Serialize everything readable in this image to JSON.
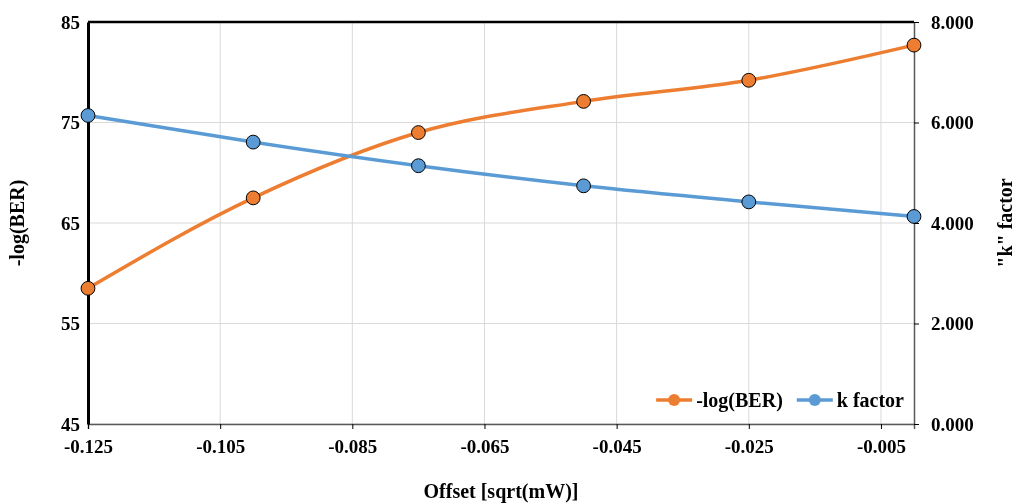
{
  "chart_data": {
    "type": "line",
    "xlabel": "Offset [sqrt(mW)]",
    "ylabel": "-log(BER)",
    "y2label": "\"k\" factor",
    "x": [
      -0.125,
      -0.1,
      -0.075,
      -0.05,
      -0.025,
      0
    ],
    "series": [
      {
        "name": "-log(BER)",
        "color": "#ed7d31",
        "values": [
          58.5,
          67.5,
          74.0,
          77.1,
          79.2,
          82.7
        ]
      },
      {
        "name": "k factor",
        "color": "#5b9bd5",
        "axis": "y2",
        "values": [
          6.14,
          5.61,
          5.14,
          4.74,
          4.42,
          4.13
        ]
      }
    ],
    "xlim": [
      -0.125,
      0
    ],
    "xticks": [
      -0.125,
      -0.105,
      -0.085,
      -0.065,
      -0.045,
      -0.025,
      -0.005
    ],
    "ylim": [
      45,
      85
    ],
    "yticks": [
      45,
      55,
      65,
      75,
      85
    ],
    "y2lim": [
      0,
      8
    ],
    "y2ticks": [
      {
        "value": 0,
        "label": "0.000"
      },
      {
        "value": 2,
        "label": "2.000"
      },
      {
        "value": 4,
        "label": "4.000"
      },
      {
        "value": 6,
        "label": "6.000"
      },
      {
        "value": 8,
        "label": "8.000"
      }
    ],
    "grid": true,
    "legend": "bottom right",
    "marker": "circle",
    "line_style": "solid"
  }
}
